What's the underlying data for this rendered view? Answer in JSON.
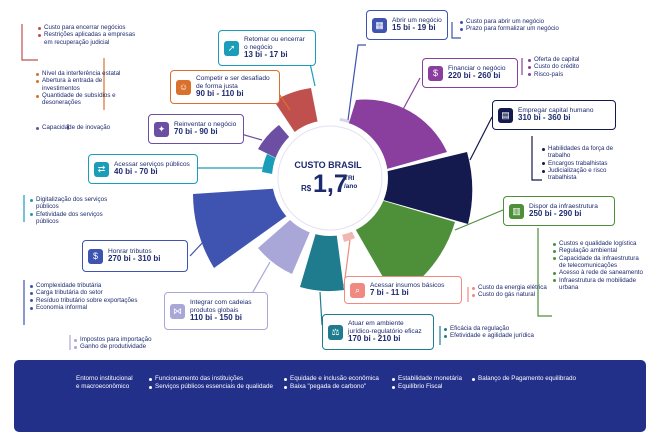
{
  "center": {
    "title": "CUSTO BRASIL",
    "currency": "R$",
    "value": "1,7",
    "unit_top": "TRI",
    "unit_bottom": "/ano"
  },
  "colors": {
    "navy": "#1d2a6e",
    "footer": "#23308a",
    "purple": "#8a3f9e",
    "dark_navy": "#141a4e",
    "green": "#4e8f3a",
    "teal": "#1f7c8e",
    "lavender": "#a9a6d8",
    "blue": "#3e54b0",
    "red": "#c0504d",
    "orange": "#d9702b",
    "violet": "#6c4fa2",
    "cyan": "#1a9db8"
  },
  "boxes": {
    "abrir": {
      "title": "Abrir um negócio",
      "value": "15 bi - 19 bi",
      "icon": "map-icon"
    },
    "financiar": {
      "title": "Financiar o negócio",
      "value": "220 bi - 260 bi",
      "icon": "money-hand-icon"
    },
    "empregar": {
      "title": "Empregar capital humano",
      "value": "310 bi - 360 bi",
      "icon": "briefcase-icon"
    },
    "infra": {
      "title": "Dispor da infraestrutura",
      "value": "250 bi - 290 bi",
      "icon": "buildings-icon"
    },
    "insumos": {
      "title": "Acessar insumos básicos",
      "value": "7 bi - 11 bi",
      "icon": "search-icon"
    },
    "atuar": {
      "title_line1": "Atuar em ambiente",
      "title_line2": "jurídico-regulatório eficaz",
      "value": "170 bi - 210 bi",
      "icon": "gavel-icon"
    },
    "integrar": {
      "title_line1": "Integrar com cadeias",
      "title_line2": "produtos globais",
      "value": "110 bi - 150 bi",
      "icon": "connections-icon"
    },
    "honrar": {
      "title": "Honrar tributos",
      "value": "270 bi - 310 bi",
      "icon": "dollar-icon"
    },
    "servicos": {
      "title": "Acessar serviços públicos",
      "value": "40 bi - 70 bi",
      "icon": "handshake-icon"
    },
    "reinventar": {
      "title": "Reinventar o negócio",
      "value": "70 bi - 90 bi",
      "icon": "lightbulb-icon"
    },
    "competir": {
      "title_line1": "Competir e ser desafiado",
      "title_line2": "de forma justa",
      "value": "90 bi - 110 bi",
      "icon": "people-icon"
    },
    "retomar": {
      "title_line1": "Retomar ou encerrar",
      "title_line2": "o negócio",
      "value": "13 bi - 17 bi",
      "icon": "rocket-icon"
    }
  },
  "lists": {
    "abrir": [
      "Custo para abrir um negócio",
      "Prazo para formalizar um negócio"
    ],
    "financiar": [
      "Oferta de capital",
      "Custo do crédito",
      "Risco-país"
    ],
    "empregar": [
      "Habilidades da força de trabalho",
      "Encargos trabalhistas",
      "Judicialização e risco trabalhista"
    ],
    "infra": [
      "Custos e qualidade logística",
      "Regulação ambiental",
      "Capacidade da infraestrutura de telecomunicações",
      "Acesso à rede de saneamento",
      "Infraestrutura de mobilidade urbana"
    ],
    "insumos": [
      "Custo da energia elétrica",
      "Custo do gás natural"
    ],
    "atuar": [
      "Eficácia da regulação",
      "Efetividade e agilidade jurídica"
    ],
    "integrar": [
      "Impostos para importação",
      "Ganho de produtividade"
    ],
    "honrar": [
      "Complexidade tributária",
      "Carga tributária do setor",
      "Resíduo tributário sobre exportações",
      "Economia informal"
    ],
    "servicos": [
      "Digitalização dos serviços públicos",
      "Efetividade dos serviços públicos"
    ],
    "reinventar": [
      "Capacidade de inovação"
    ],
    "competir": [
      "Nível da interferência estatal",
      "Abertura à entrada de investimentos",
      "Quantidade de subsídios e desonerações"
    ],
    "retomar": [
      "Custo para encerrar negócios",
      "Restrições aplicadas a empresas em recuperação judicial"
    ]
  },
  "footer": {
    "col1": {
      "line1": "Entorno institucional",
      "line2": "e macroeconômico"
    },
    "col2": [
      "Funcionamento das instituições",
      "Serviços públicos essenciais de qualidade"
    ],
    "col3": [
      "Equidade e inclusão econômica",
      "Baixa \"pegada de carbono\""
    ],
    "col4": [
      "Estabilidade monetária",
      "Equilíbrio Fiscal"
    ],
    "col5": [
      "Balanço de Pagamento equilibrado"
    ]
  }
}
